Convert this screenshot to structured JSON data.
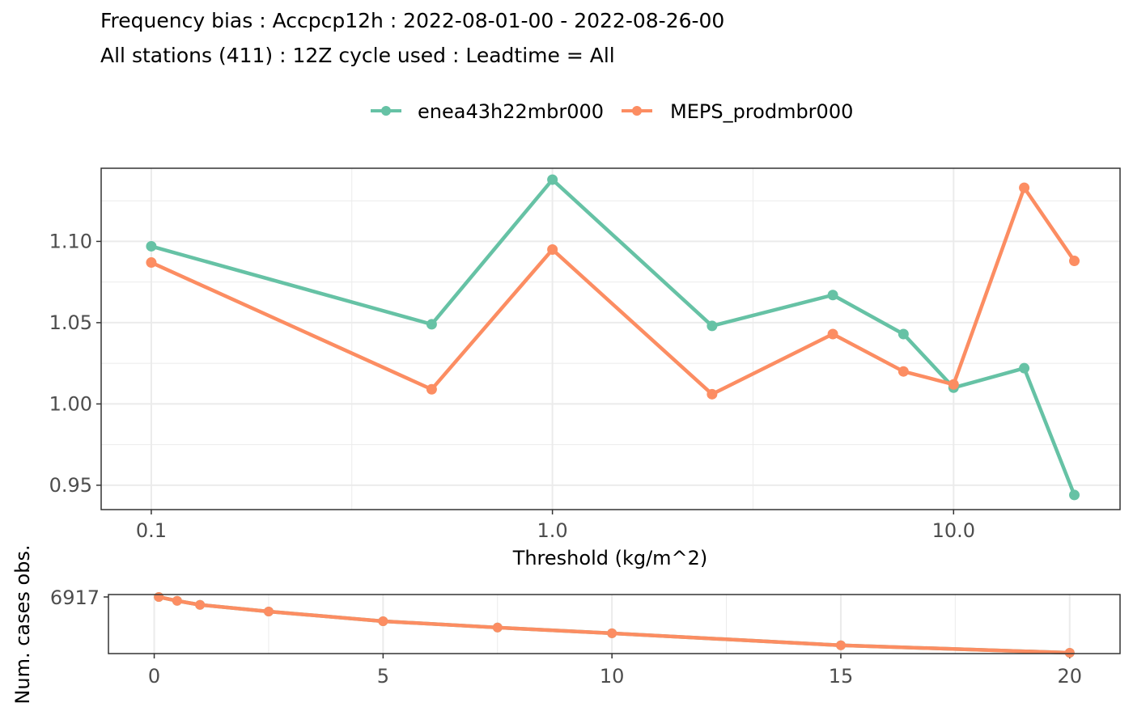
{
  "title_line1": "Frequency bias : Accpcp12h : 2022-08-01-00 - 2022-08-26-00",
  "title_line2": "All stations (411) : 12Z cycle used : Leadtime = All",
  "colors": {
    "series1": "#66c2a5",
    "series2": "#fc8d62",
    "grid": "#ebebeb",
    "panel_border": "#333333"
  },
  "chart_data": [
    {
      "type": "line",
      "xlabel": "Threshold (kg/m^2)",
      "x_scale": "log10",
      "xlim": [
        0.075,
        26
      ],
      "ylim": [
        0.935,
        1.145
      ],
      "x_ticks": [
        {
          "value": 0.1,
          "label": "0.1"
        },
        {
          "value": 1,
          "label": "1.0"
        },
        {
          "value": 10,
          "label": "10.0"
        }
      ],
      "y_ticks": [
        {
          "value": 0.95,
          "label": "0.95"
        },
        {
          "value": 1.0,
          "label": "1.00"
        },
        {
          "value": 1.05,
          "label": "1.05"
        },
        {
          "value": 1.1,
          "label": "1.10"
        }
      ],
      "legend_position": "top",
      "x": [
        0.1,
        0.5,
        1,
        2.5,
        5,
        7.5,
        10,
        15,
        20
      ],
      "series": [
        {
          "name": "enea43h22mbr000",
          "color": "#66c2a5",
          "values": [
            1.097,
            1.049,
            1.138,
            1.048,
            1.067,
            1.043,
            1.01,
            1.022,
            0.944
          ]
        },
        {
          "name": "MEPS_prodmbr000",
          "color": "#fc8d62",
          "values": [
            1.087,
            1.009,
            1.095,
            1.006,
            1.043,
            1.02,
            1.012,
            1.133,
            1.088
          ]
        }
      ]
    },
    {
      "type": "line",
      "ylabel": "Num. cases obs.",
      "xlim": [
        -1,
        21.1
      ],
      "ylim": [
        0,
        6917
      ],
      "x_ticks": [
        {
          "value": 0,
          "label": "0"
        },
        {
          "value": 5,
          "label": "5"
        },
        {
          "value": 10,
          "label": "10"
        },
        {
          "value": 15,
          "label": "15"
        },
        {
          "value": 20,
          "label": "20"
        }
      ],
      "y_ticks": [
        {
          "value": 6917,
          "label": "6917"
        }
      ],
      "x": [
        0.1,
        0.5,
        1,
        2.5,
        5,
        7.5,
        10,
        15,
        20
      ],
      "series": [
        {
          "name": "enea43h22mbr000",
          "color": "#66c2a5",
          "values": [
            6917,
            6580,
            6230,
            5650,
            4800,
            4250,
            3750,
            2700,
            2050
          ]
        },
        {
          "name": "MEPS_prodmbr000",
          "color": "#fc8d62",
          "values": [
            6917,
            6580,
            6230,
            5650,
            4800,
            4250,
            3750,
            2700,
            2050
          ]
        }
      ]
    }
  ]
}
